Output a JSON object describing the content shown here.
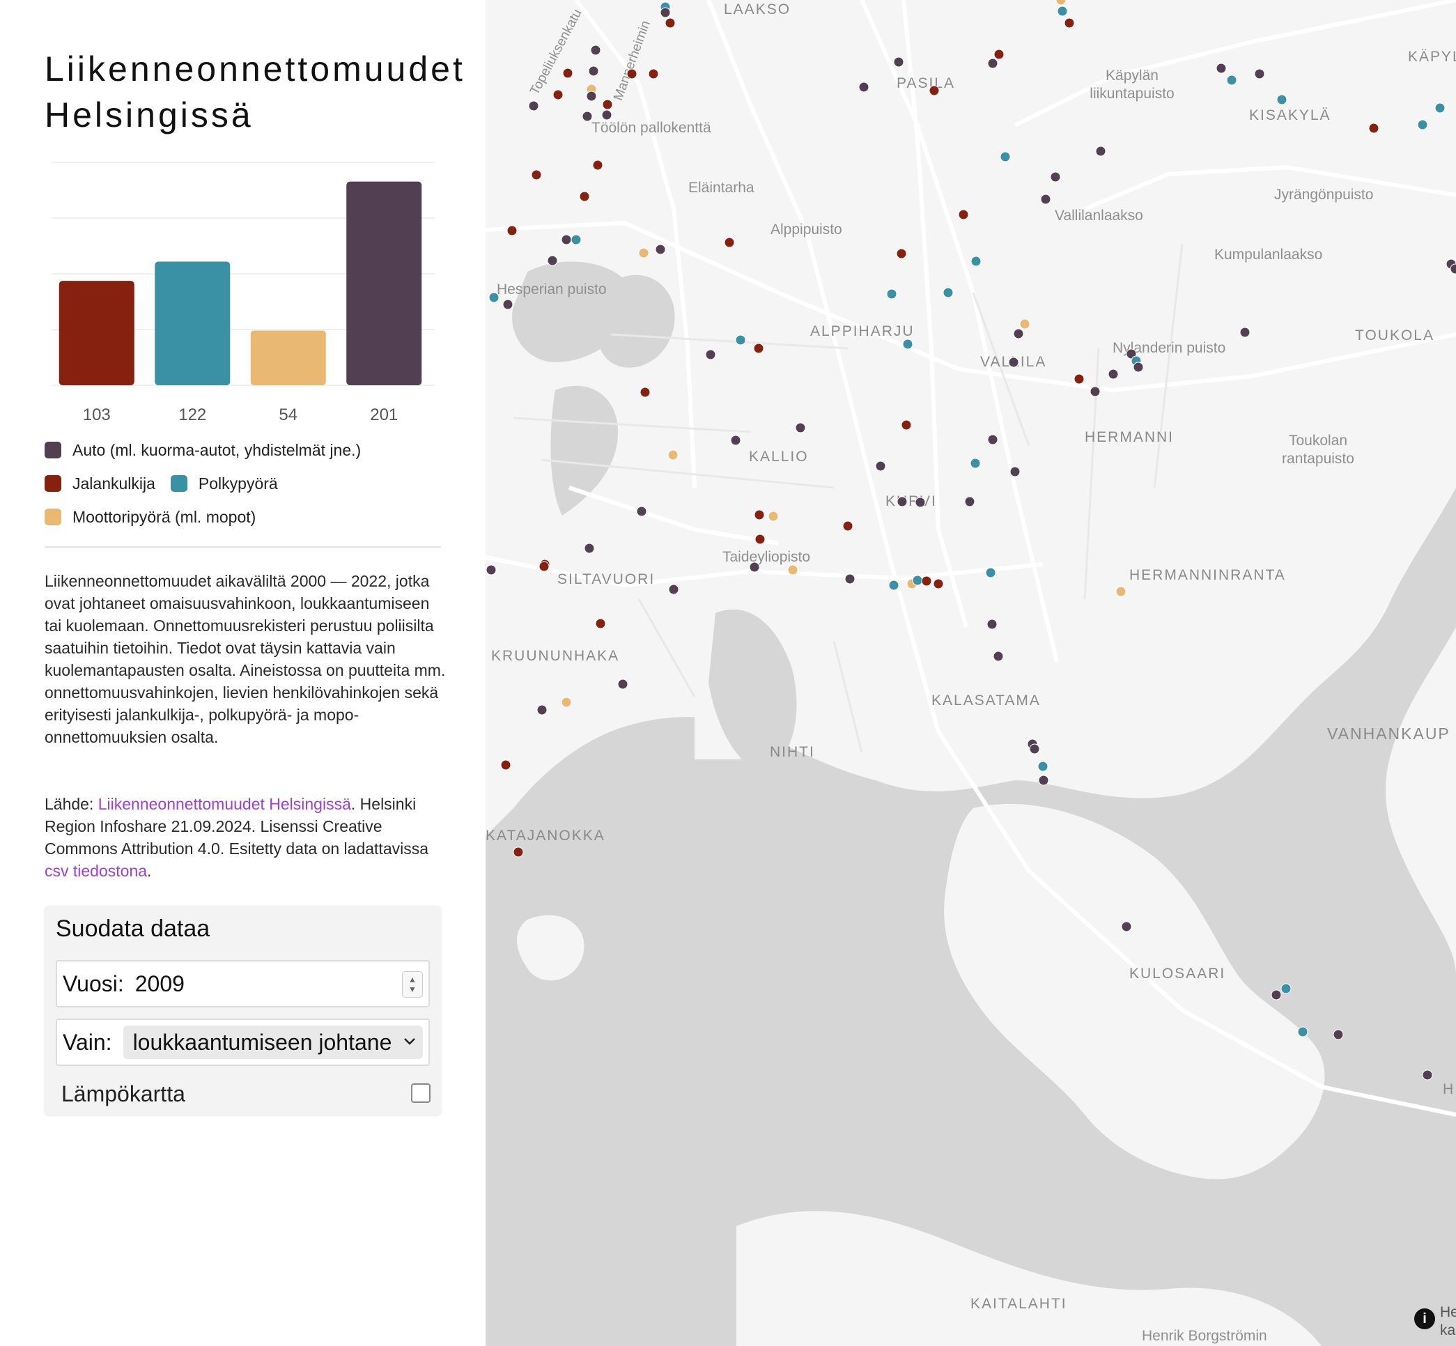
{
  "title": "Liikenneonnettomuudet Helsingissä",
  "chart_data": {
    "type": "bar",
    "categories": [
      "Jalankulkija",
      "Polkypyörä",
      "Moottoripyörä (ml. mopot)",
      "Auto (ml. kuorma-autot, yhdistelmät jne.)"
    ],
    "values": [
      103,
      122,
      54,
      201
    ],
    "colors": [
      "#86200f",
      "#3a90a4",
      "#e9b872",
      "#524052"
    ],
    "ylim": [
      0,
      220
    ],
    "grid": true
  },
  "legend": {
    "auto": "Auto (ml. kuorma-autot, yhdistelmät jne.)",
    "jalankulkija": "Jalankulkija",
    "polkypyora": "Polkypyörä",
    "moottoripyora": "Moottoripyörä (ml. mopot)"
  },
  "description": "Liikenneonnettomuudet aikaväliltä 2000 — 2022, jotka ovat johtaneet omaisuusvahinkoon, loukkaantumiseen tai kuolemaan. Onnettomuusrekisteri perustuu poliisilta saatuihin tietoihin. Tiedot ovat täysin kattavia vain kuolemantapausten osalta. Aineistossa on puutteita mm. onnettomuusvahinkojen, lievien henkilövahinkojen sekä erityisesti jalankulkija-, polkupyörä- ja mopo-onnettomuuksien osalta.",
  "source": {
    "prefix": "Lähde: ",
    "link_text": "Liikenneonnettomuudet Helsingissä",
    "middle": ". Helsinki Region Infoshare 21.09.2024. Lisenssi Creative Commons Attribution 4.0. Esitetty data on ladattavissa ",
    "csv_link_text": "csv tiedostona",
    "suffix": "."
  },
  "filter": {
    "title": "Suodata dataa",
    "year_label": "Vuosi:",
    "year_value": "2009",
    "type_label": "Vain:",
    "type_value": "loukkaantumiseen johtane",
    "heatmap_label": "Lämpökartta",
    "heatmap_checked": false
  },
  "map": {
    "labels": [
      {
        "name": "area-label-laakso",
        "text": "LAAKSO",
        "kind": "area"
      },
      {
        "name": "area-label-pasila",
        "text": "PASILA",
        "kind": "area"
      },
      {
        "name": "park-label-kapylan-liikuntapuisto",
        "text": "Käpylän liikuntapuisto",
        "kind": "park"
      },
      {
        "name": "area-label-kisakyla",
        "text": "KISAKYLÄ",
        "kind": "area"
      },
      {
        "name": "area-label-kapyla",
        "text": "KÄPYL",
        "kind": "area"
      },
      {
        "name": "street-label-topeliuksenkatu",
        "text": "Topeliuksenkatu",
        "kind": "park"
      },
      {
        "name": "street-label-mannerheimintie",
        "text": "Mannerheimin",
        "kind": "park"
      },
      {
        "name": "park-label-toolon-pallokentta",
        "text": "Töölön pallokenttä",
        "kind": "park"
      },
      {
        "name": "park-label-elaintarha",
        "text": "Eläintarha",
        "kind": "park"
      },
      {
        "name": "park-label-vallilanlaakso",
        "text": "Vallilanlaakso",
        "kind": "park"
      },
      {
        "name": "park-label-jyrangonpuisto",
        "text": "Jyrängönpuisto",
        "kind": "park"
      },
      {
        "name": "park-label-alppipuisto",
        "text": "Alppipuisto",
        "kind": "park"
      },
      {
        "name": "park-label-kumpulanlaakso",
        "text": "Kumpulanlaakso",
        "kind": "park"
      },
      {
        "name": "park-label-hesperian-puisto",
        "text": "Hesperian puisto",
        "kind": "park"
      },
      {
        "name": "area-label-alppiharju",
        "text": "ALPPIHARJU",
        "kind": "area"
      },
      {
        "name": "park-label-nylanderin-puisto",
        "text": "Nylanderin puisto",
        "kind": "park"
      },
      {
        "name": "area-label-vallila",
        "text": "VALLILA",
        "kind": "area"
      },
      {
        "name": "area-label-toukola",
        "text": "TOUKOLA",
        "kind": "area"
      },
      {
        "name": "area-label-hermanni",
        "text": "HERMANNI",
        "kind": "area"
      },
      {
        "name": "park-label-toukolan-rantapuisto",
        "text": "Toukolan rantapuisto",
        "kind": "park"
      },
      {
        "name": "area-label-kallio",
        "text": "KALLIO",
        "kind": "area"
      },
      {
        "name": "area-label-kurvi",
        "text": "KURVI",
        "kind": "area"
      },
      {
        "name": "park-label-taideyliopisto",
        "text": "Taideyliopisto",
        "kind": "park"
      },
      {
        "name": "area-label-siltavuori",
        "text": "SILTAVUORI",
        "kind": "area"
      },
      {
        "name": "area-label-hermanninranta",
        "text": "HERMANNINRANTA",
        "kind": "area"
      },
      {
        "name": "area-label-kruununhaka",
        "text": "KRUUNUNHAKA",
        "kind": "area"
      },
      {
        "name": "area-label-kalasatama",
        "text": "KALASATAMA",
        "kind": "area"
      },
      {
        "name": "area-label-vanhankaupunki",
        "text": "VANHANKAUP",
        "kind": "area"
      },
      {
        "name": "area-label-nihti",
        "text": "NIHTI",
        "kind": "area"
      },
      {
        "name": "area-label-katajanokka",
        "text": "KATAJANOKKA",
        "kind": "area"
      },
      {
        "name": "area-label-kulosaari",
        "text": "KULOSAARI",
        "kind": "area"
      },
      {
        "name": "area-label-kaitalahti",
        "text": "KAITALAHTI",
        "kind": "area"
      },
      {
        "name": "street-label-henrik-borgstromin",
        "text": "Henrik Borgströmin",
        "kind": "park"
      },
      {
        "name": "area-label-h-edge",
        "text": "H",
        "kind": "area"
      },
      {
        "name": "attribution-fragment-he",
        "text": "He",
        "kind": "park"
      },
      {
        "name": "attribution-fragment-ka",
        "text": "ka",
        "kind": "park"
      }
    ],
    "accident_types": [
      "auto",
      "jalankulkija",
      "polkypyora",
      "moottoripyora"
    ],
    "info_icon": "info-icon",
    "info_glyph": "i"
  }
}
